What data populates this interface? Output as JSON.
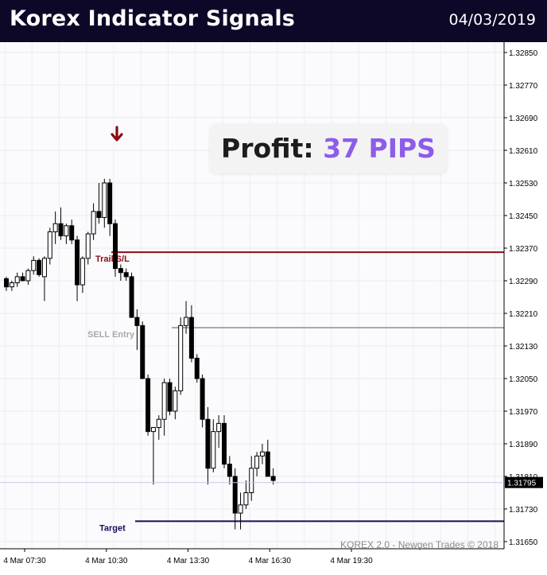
{
  "header": {
    "title": "Korex Indicator Signals",
    "date": "04/03/2019"
  },
  "profit_box": {
    "label": "Profit:",
    "value": "37 PIPS"
  },
  "watermark": "KOREX 2.0 - Newgen Trades © 2018",
  "colors": {
    "header_bg": "#0e0828",
    "trail_line": "#8b0a14",
    "entry_line": "#a9a9a9",
    "target_line": "#14105c",
    "sell_arrow": "#8b0a14",
    "profit_accent": "#8d5ce8",
    "candle_up_fill": "#ffffff",
    "candle_down_fill": "#000000"
  },
  "icons": {
    "sell_signal": "down-arrow-icon"
  },
  "chart_data": {
    "type": "candlestick",
    "y_axis": {
      "position": "right",
      "ticks": [
        "1.32850",
        "1.32770",
        "1.32690",
        "1.32610",
        "1.32530",
        "1.32450",
        "1.32370",
        "1.32290",
        "1.32210",
        "1.32130",
        "1.32050",
        "1.31970",
        "1.31890",
        "1.31810",
        "1.31730",
        "1.31650"
      ],
      "ylim": [
        1.3164,
        1.329
      ]
    },
    "x_axis": {
      "ticks": [
        "4 Mar 07:30",
        "4 Mar 10:30",
        "4 Mar 13:30",
        "4 Mar 16:30",
        "4 Mar 19:30"
      ],
      "tick_index": [
        0,
        15,
        30,
        45,
        60
      ]
    },
    "grid": true,
    "current_price": "1.31795",
    "levels": [
      {
        "name": "Trail S/L",
        "price": 1.3236,
        "style": "solid",
        "color": "#8b0a14"
      },
      {
        "name": "SELL Entry",
        "price": 1.32175,
        "style": "solid",
        "color": "#a9a9a9"
      },
      {
        "name": "Target",
        "price": 1.317,
        "style": "solid",
        "color": "#14105c"
      }
    ],
    "sell_signal_index": 26,
    "candles": [
      {
        "o": 1.32295,
        "h": 1.323,
        "l": 1.32265,
        "c": 1.32275
      },
      {
        "o": 1.32275,
        "h": 1.3229,
        "l": 1.32265,
        "c": 1.32285
      },
      {
        "o": 1.32285,
        "h": 1.3231,
        "l": 1.32275,
        "c": 1.323
      },
      {
        "o": 1.323,
        "h": 1.3231,
        "l": 1.3229,
        "c": 1.3229
      },
      {
        "o": 1.3229,
        "h": 1.3232,
        "l": 1.3228,
        "c": 1.32315
      },
      {
        "o": 1.32315,
        "h": 1.3235,
        "l": 1.32305,
        "c": 1.3234
      },
      {
        "o": 1.3234,
        "h": 1.32345,
        "l": 1.323,
        "c": 1.32305
      },
      {
        "o": 1.323,
        "h": 1.3235,
        "l": 1.3224,
        "c": 1.32345
      },
      {
        "o": 1.32345,
        "h": 1.3242,
        "l": 1.3233,
        "c": 1.3241
      },
      {
        "o": 1.3241,
        "h": 1.3246,
        "l": 1.3238,
        "c": 1.3243
      },
      {
        "o": 1.3243,
        "h": 1.3247,
        "l": 1.3239,
        "c": 1.324
      },
      {
        "o": 1.324,
        "h": 1.3243,
        "l": 1.3238,
        "c": 1.32425
      },
      {
        "o": 1.32425,
        "h": 1.3244,
        "l": 1.3238,
        "c": 1.3239
      },
      {
        "o": 1.3239,
        "h": 1.324,
        "l": 1.3224,
        "c": 1.3228
      },
      {
        "o": 1.3228,
        "h": 1.3235,
        "l": 1.3226,
        "c": 1.32345
      },
      {
        "o": 1.32345,
        "h": 1.3241,
        "l": 1.3233,
        "c": 1.32405
      },
      {
        "o": 1.32405,
        "h": 1.3248,
        "l": 1.3239,
        "c": 1.3246
      },
      {
        "o": 1.3246,
        "h": 1.3253,
        "l": 1.3243,
        "c": 1.32445
      },
      {
        "o": 1.32445,
        "h": 1.3254,
        "l": 1.3242,
        "c": 1.3253
      },
      {
        "o": 1.3253,
        "h": 1.3254,
        "l": 1.324,
        "c": 1.3243
      },
      {
        "o": 1.3243,
        "h": 1.3244,
        "l": 1.323,
        "c": 1.3232
      },
      {
        "o": 1.3232,
        "h": 1.3233,
        "l": 1.3229,
        "c": 1.3231
      },
      {
        "o": 1.3231,
        "h": 1.3232,
        "l": 1.3229,
        "c": 1.323
      },
      {
        "o": 1.323,
        "h": 1.3231,
        "l": 1.322,
        "c": 1.322
      },
      {
        "o": 1.322,
        "h": 1.3222,
        "l": 1.3212,
        "c": 1.3218
      },
      {
        "o": 1.3218,
        "h": 1.3219,
        "l": 1.3205,
        "c": 1.3205
      },
      {
        "o": 1.3205,
        "h": 1.3206,
        "l": 1.3191,
        "c": 1.3192
      },
      {
        "o": 1.3192,
        "h": 1.3193,
        "l": 1.3179,
        "c": 1.3193
      },
      {
        "o": 1.3193,
        "h": 1.3196,
        "l": 1.319,
        "c": 1.3195
      },
      {
        "o": 1.3195,
        "h": 1.3205,
        "l": 1.3191,
        "c": 1.3204
      },
      {
        "o": 1.3204,
        "h": 1.3205,
        "l": 1.3196,
        "c": 1.3197
      },
      {
        "o": 1.3197,
        "h": 1.3203,
        "l": 1.3195,
        "c": 1.3202
      },
      {
        "o": 1.3202,
        "h": 1.322,
        "l": 1.3201,
        "c": 1.3218
      },
      {
        "o": 1.3218,
        "h": 1.3224,
        "l": 1.3216,
        "c": 1.322
      },
      {
        "o": 1.322,
        "h": 1.3223,
        "l": 1.3209,
        "c": 1.321
      },
      {
        "o": 1.321,
        "h": 1.3211,
        "l": 1.3204,
        "c": 1.3205
      },
      {
        "o": 1.3205,
        "h": 1.3206,
        "l": 1.3193,
        "c": 1.3195
      },
      {
        "o": 1.3195,
        "h": 1.3198,
        "l": 1.3179,
        "c": 1.3183
      },
      {
        "o": 1.3183,
        "h": 1.3195,
        "l": 1.3182,
        "c": 1.3192
      },
      {
        "o": 1.3192,
        "h": 1.3196,
        "l": 1.3188,
        "c": 1.3194
      },
      {
        "o": 1.3194,
        "h": 1.3196,
        "l": 1.3183,
        "c": 1.3184
      },
      {
        "o": 1.3184,
        "h": 1.3186,
        "l": 1.3179,
        "c": 1.3181
      },
      {
        "o": 1.3181,
        "h": 1.3183,
        "l": 1.3168,
        "c": 1.3172
      },
      {
        "o": 1.3172,
        "h": 1.3177,
        "l": 1.3168,
        "c": 1.3174
      },
      {
        "o": 1.3174,
        "h": 1.318,
        "l": 1.3173,
        "c": 1.3177
      },
      {
        "o": 1.3177,
        "h": 1.3186,
        "l": 1.3175,
        "c": 1.3183
      },
      {
        "o": 1.3183,
        "h": 1.3187,
        "l": 1.3181,
        "c": 1.3186
      },
      {
        "o": 1.3186,
        "h": 1.3189,
        "l": 1.3184,
        "c": 1.3187
      },
      {
        "o": 1.3187,
        "h": 1.319,
        "l": 1.3181,
        "c": 1.3181
      },
      {
        "o": 1.3181,
        "h": 1.3183,
        "l": 1.3179,
        "c": 1.318
      }
    ]
  }
}
